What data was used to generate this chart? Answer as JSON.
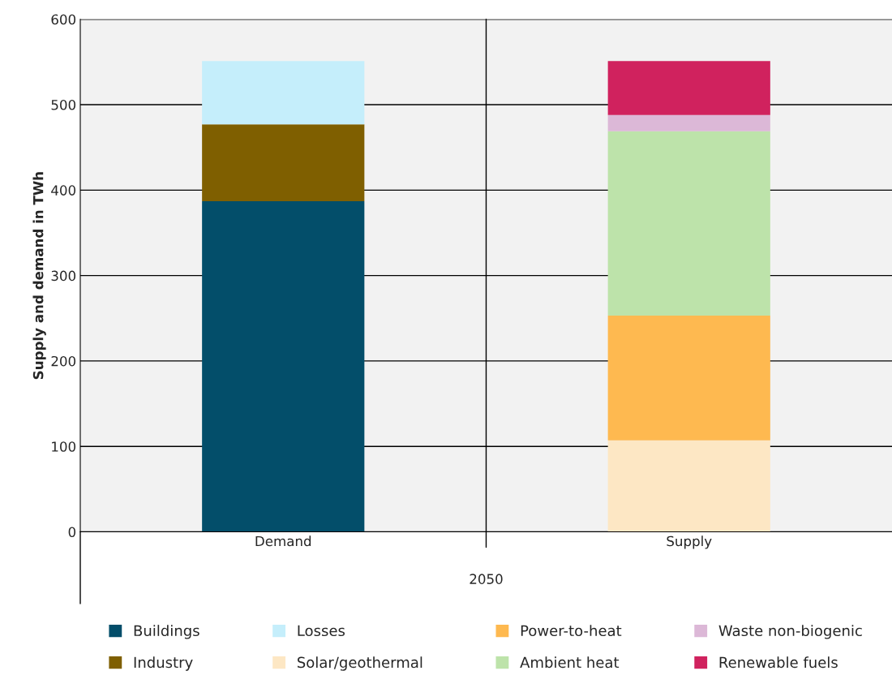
{
  "chart_data": {
    "type": "bar",
    "stacked": true,
    "ylabel": "Supply and demand in TWh",
    "xlabel": "2050",
    "categories": [
      "Demand",
      "Supply"
    ],
    "series": [
      {
        "name": "Buildings",
        "color": "#034e6a",
        "values": [
          387,
          null
        ]
      },
      {
        "name": "Industry",
        "color": "#7f5f00",
        "values": [
          90,
          null
        ]
      },
      {
        "name": "Losses",
        "color": "#c5eefb",
        "values": [
          74,
          null
        ]
      },
      {
        "name": "Solar/geothermal",
        "color": "#fde7c4",
        "values": [
          null,
          107
        ]
      },
      {
        "name": "Power-to-heat",
        "color": "#feb950",
        "values": [
          null,
          146
        ]
      },
      {
        "name": "Ambient heat",
        "color": "#bde3aa",
        "values": [
          null,
          216
        ]
      },
      {
        "name": "Waste non-biogenic",
        "color": "#dcb8d7",
        "values": [
          null,
          19
        ]
      },
      {
        "name": "Renewable fuels",
        "color": "#d0225e",
        "values": [
          null,
          63
        ]
      }
    ],
    "ylim": [
      0,
      600
    ],
    "yticks": [
      0,
      100,
      200,
      300,
      400,
      500,
      600
    ],
    "grid": "y",
    "legend": "bottom"
  }
}
